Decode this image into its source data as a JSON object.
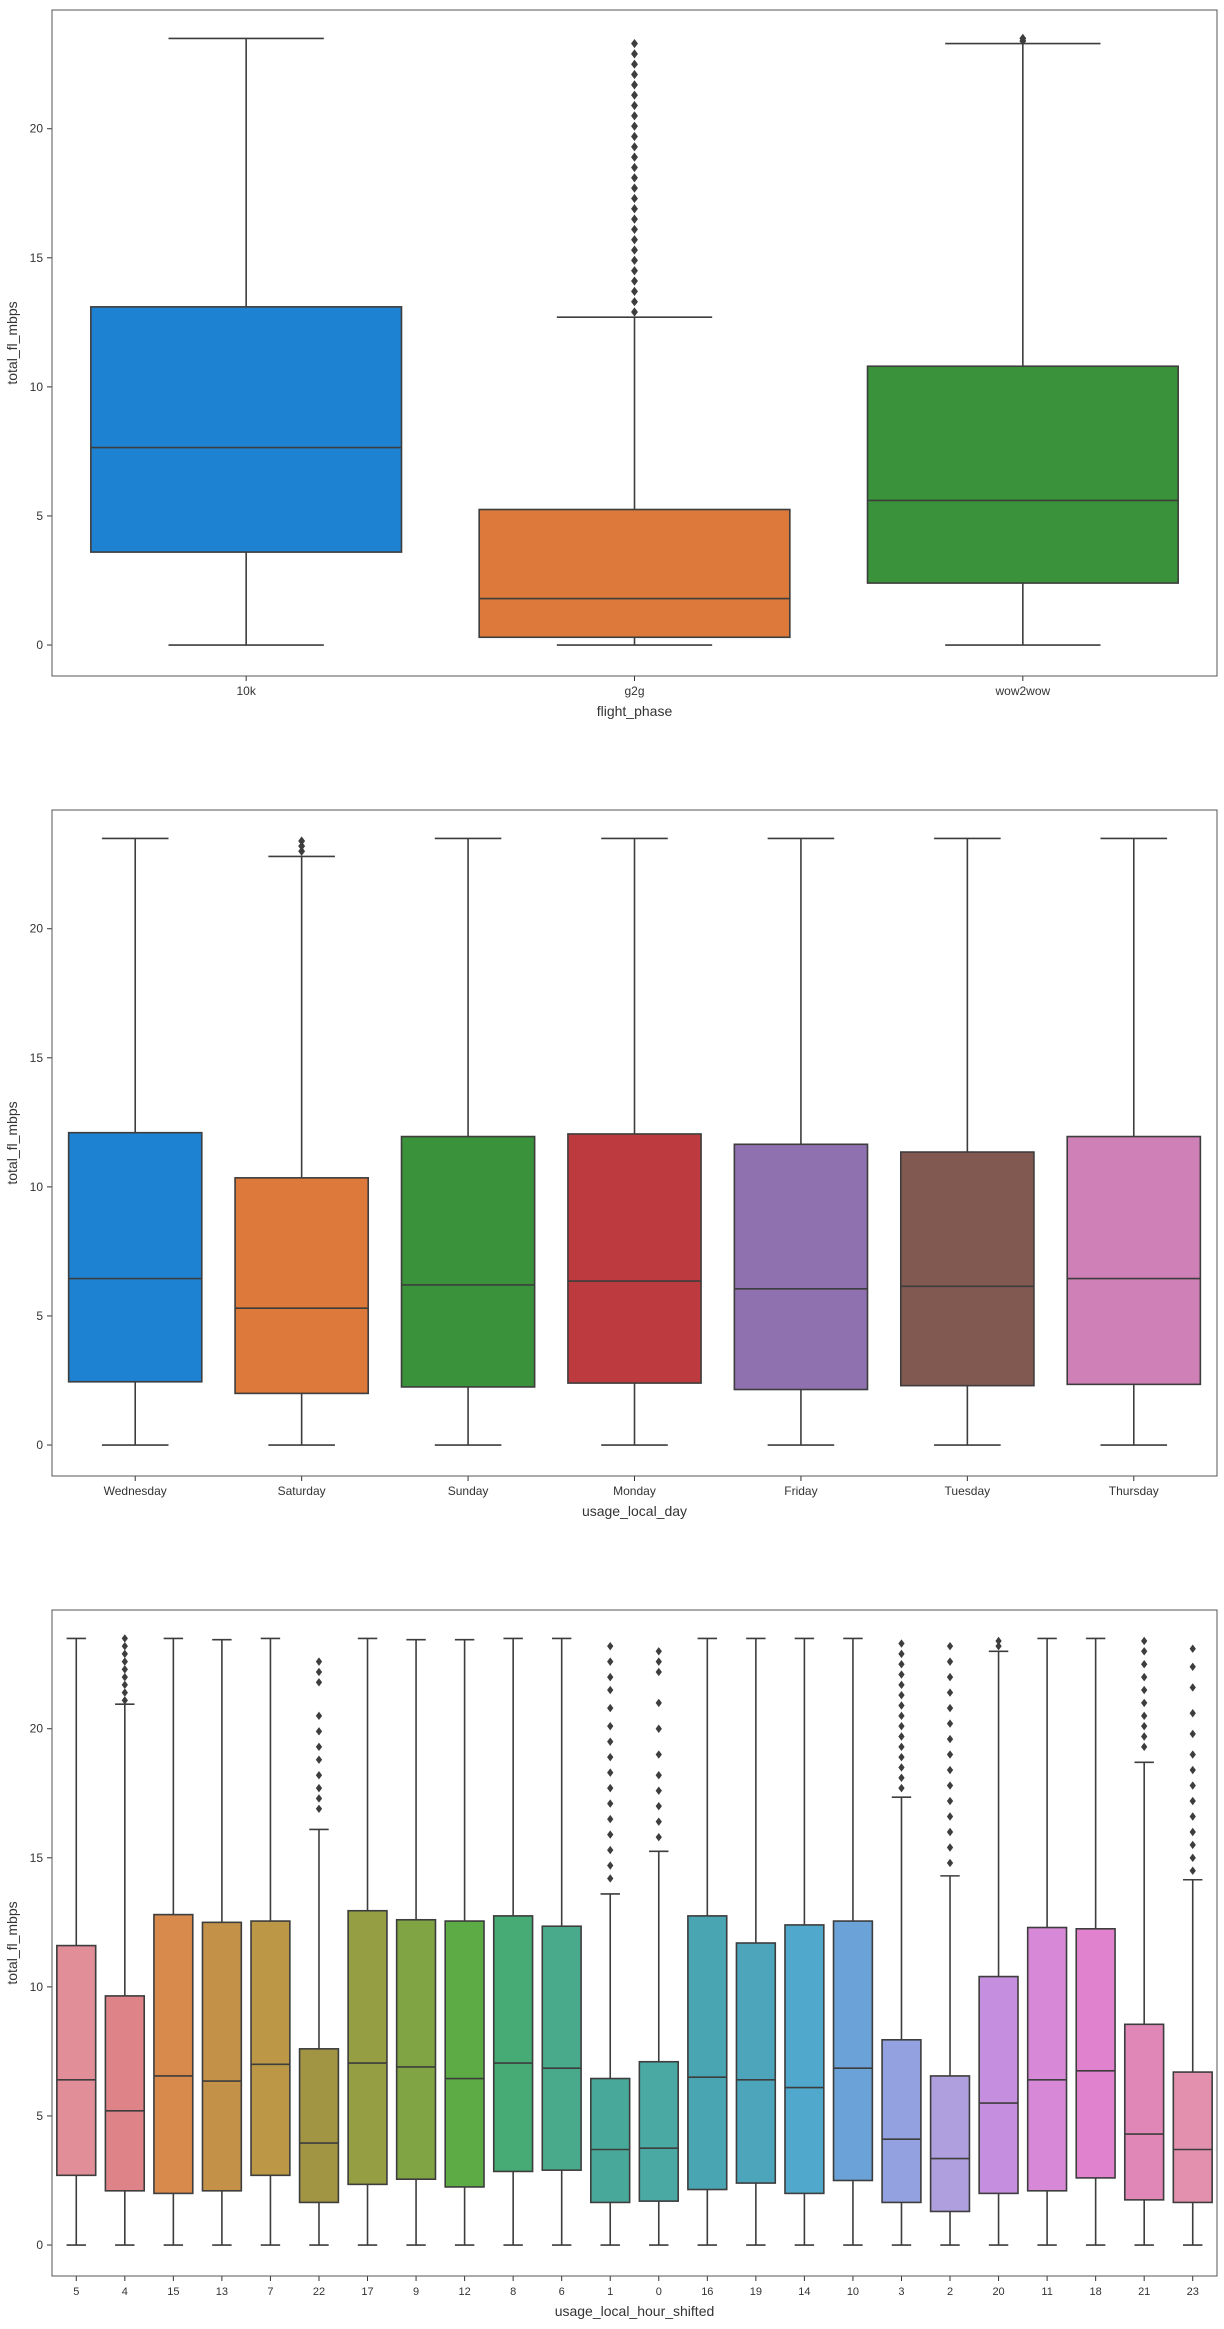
{
  "chart_data": [
    {
      "type": "box",
      "xlabel": "flight_phase",
      "ylabel": "total_fl_mbps",
      "ylim": [
        -1.2,
        24.6
      ],
      "yticks": [
        0,
        5,
        10,
        15,
        20
      ],
      "grid": false,
      "categories": [
        "10k",
        "g2g",
        "wow2wow"
      ],
      "colors": [
        "#1f86d8",
        "#e37d3d",
        "#3c973c"
      ],
      "boxes": [
        {
          "whislo": 0,
          "q1": 3.6,
          "med": 7.65,
          "q3": 13.1,
          "whishi": 23.5,
          "fliers": []
        },
        {
          "whislo": 0,
          "q1": 0.3,
          "med": 1.8,
          "q3": 5.25,
          "whishi": 12.7,
          "fliers": [
            12.9,
            13.3,
            13.7,
            14.1,
            14.5,
            14.9,
            15.3,
            15.7,
            16.1,
            16.5,
            16.9,
            17.3,
            17.7,
            18.1,
            18.5,
            18.9,
            19.3,
            19.7,
            20.1,
            20.5,
            20.9,
            21.3,
            21.7,
            22.1,
            22.5,
            22.9,
            23.3
          ]
        },
        {
          "whislo": 0,
          "q1": 2.4,
          "med": 5.6,
          "q3": 10.8,
          "whishi": 23.3,
          "fliers": [
            23.4,
            23.5
          ]
        }
      ]
    },
    {
      "type": "box",
      "xlabel": "usage_local_day",
      "ylabel": "total_fl_mbps",
      "ylim": [
        -1.2,
        24.6
      ],
      "yticks": [
        0,
        5,
        10,
        15,
        20
      ],
      "grid": false,
      "categories": [
        "Wednesday",
        "Saturday",
        "Sunday",
        "Monday",
        "Friday",
        "Tuesday",
        "Thursday"
      ],
      "colors": [
        "#1f86d8",
        "#e37d3d",
        "#3c973c",
        "#c33c40",
        "#9375b4",
        "#855c52",
        "#d585bd"
      ],
      "boxes": [
        {
          "whislo": 0,
          "q1": 2.45,
          "med": 6.45,
          "q3": 12.1,
          "whishi": 23.5,
          "fliers": []
        },
        {
          "whislo": 0,
          "q1": 2.0,
          "med": 5.3,
          "q3": 10.35,
          "whishi": 22.8,
          "fliers": [
            23.0,
            23.2,
            23.4
          ]
        },
        {
          "whislo": 0,
          "q1": 2.25,
          "med": 6.2,
          "q3": 11.95,
          "whishi": 23.5,
          "fliers": []
        },
        {
          "whislo": 0,
          "q1": 2.4,
          "med": 6.35,
          "q3": 12.05,
          "whishi": 23.5,
          "fliers": []
        },
        {
          "whislo": 0,
          "q1": 2.15,
          "med": 6.05,
          "q3": 11.65,
          "whishi": 23.5,
          "fliers": []
        },
        {
          "whislo": 0,
          "q1": 2.3,
          "med": 6.15,
          "q3": 11.35,
          "whishi": 23.5,
          "fliers": []
        },
        {
          "whislo": 0,
          "q1": 2.35,
          "med": 6.45,
          "q3": 11.95,
          "whishi": 23.5,
          "fliers": []
        }
      ]
    },
    {
      "type": "box",
      "xlabel": "usage_local_hour_shifted",
      "ylabel": "total_fl_mbps",
      "ylim": [
        -1.2,
        24.6
      ],
      "yticks": [
        0,
        5,
        10,
        15,
        20
      ],
      "grid": false,
      "categories": [
        "5",
        "4",
        "15",
        "13",
        "7",
        "22",
        "17",
        "9",
        "12",
        "8",
        "6",
        "1",
        "0",
        "16",
        "19",
        "14",
        "10",
        "3",
        "2",
        "20",
        "11",
        "18",
        "21",
        "23"
      ],
      "colors": [
        "#e8929d",
        "#e5878c",
        "#df8d4e",
        "#c9964a",
        "#c19c48",
        "#a69a45",
        "#9aa344",
        "#84a846",
        "#60b046",
        "#48b078",
        "#4aaf8e",
        "#4aae9f",
        "#4daea9",
        "#4baab6",
        "#4eaac0",
        "#52aed2",
        "#6ea8df",
        "#98a6e8",
        "#b5a4e5",
        "#cc92e6",
        "#de8ddf",
        "#e886d5",
        "#e88bbe",
        "#e994b2"
      ],
      "boxes": [
        {
          "whislo": 0,
          "q1": 2.7,
          "med": 6.4,
          "q3": 11.6,
          "whishi": 23.5,
          "fliers": []
        },
        {
          "whislo": 0,
          "q1": 2.1,
          "med": 5.2,
          "q3": 9.65,
          "whishi": 20.95,
          "fliers": [
            21.1,
            21.4,
            21.7,
            22.0,
            22.3,
            22.6,
            22.9,
            23.2,
            23.5
          ]
        },
        {
          "whislo": 0,
          "q1": 2.0,
          "med": 6.55,
          "q3": 12.8,
          "whishi": 23.5,
          "fliers": []
        },
        {
          "whislo": 0,
          "q1": 2.1,
          "med": 6.35,
          "q3": 12.5,
          "whishi": 23.45,
          "fliers": []
        },
        {
          "whislo": 0,
          "q1": 2.7,
          "med": 7.0,
          "q3": 12.55,
          "whishi": 23.5,
          "fliers": []
        },
        {
          "whislo": 0,
          "q1": 1.65,
          "med": 3.95,
          "q3": 7.6,
          "whishi": 16.1,
          "fliers": [
            16.9,
            17.3,
            17.7,
            18.2,
            18.8,
            19.3,
            19.9,
            20.5,
            21.8,
            22.2,
            22.6
          ]
        },
        {
          "whislo": 0,
          "q1": 2.35,
          "med": 7.05,
          "q3": 12.95,
          "whishi": 23.5,
          "fliers": []
        },
        {
          "whislo": 0,
          "q1": 2.55,
          "med": 6.9,
          "q3": 12.6,
          "whishi": 23.45,
          "fliers": []
        },
        {
          "whislo": 0,
          "q1": 2.25,
          "med": 6.45,
          "q3": 12.55,
          "whishi": 23.45,
          "fliers": []
        },
        {
          "whislo": 0,
          "q1": 2.85,
          "med": 7.05,
          "q3": 12.75,
          "whishi": 23.5,
          "fliers": []
        },
        {
          "whislo": 0,
          "q1": 2.9,
          "med": 6.85,
          "q3": 12.35,
          "whishi": 23.5,
          "fliers": []
        },
        {
          "whislo": 0,
          "q1": 1.65,
          "med": 3.7,
          "q3": 6.45,
          "whishi": 13.6,
          "fliers": [
            14.2,
            14.7,
            15.3,
            15.9,
            16.5,
            17.1,
            17.7,
            18.3,
            18.9,
            19.5,
            20.1,
            20.8,
            21.5,
            22.0,
            22.6,
            23.2
          ]
        },
        {
          "whislo": 0,
          "q1": 1.7,
          "med": 3.75,
          "q3": 7.1,
          "whishi": 15.25,
          "fliers": [
            15.8,
            16.4,
            17.0,
            17.6,
            18.2,
            19.0,
            20.0,
            21.0,
            22.2,
            22.6,
            23.0
          ]
        },
        {
          "whislo": 0,
          "q1": 2.15,
          "med": 6.5,
          "q3": 12.75,
          "whishi": 23.5,
          "fliers": []
        },
        {
          "whislo": 0,
          "q1": 2.4,
          "med": 6.4,
          "q3": 11.7,
          "whishi": 23.5,
          "fliers": []
        },
        {
          "whislo": 0,
          "q1": 2.0,
          "med": 6.1,
          "q3": 12.4,
          "whishi": 23.5,
          "fliers": []
        },
        {
          "whislo": 0,
          "q1": 2.5,
          "med": 6.85,
          "q3": 12.55,
          "whishi": 23.5,
          "fliers": []
        },
        {
          "whislo": 0,
          "q1": 1.65,
          "med": 4.1,
          "q3": 7.95,
          "whishi": 17.35,
          "fliers": [
            17.7,
            18.1,
            18.5,
            18.9,
            19.3,
            19.7,
            20.1,
            20.5,
            20.9,
            21.3,
            21.7,
            22.1,
            22.5,
            22.9,
            23.3
          ]
        },
        {
          "whislo": 0,
          "q1": 1.3,
          "med": 3.35,
          "q3": 6.55,
          "whishi": 14.3,
          "fliers": [
            14.8,
            15.4,
            16.0,
            16.6,
            17.2,
            17.8,
            18.4,
            19.0,
            19.6,
            20.2,
            20.8,
            21.4,
            22.0,
            22.6,
            23.2
          ]
        },
        {
          "whislo": 0,
          "q1": 2.0,
          "med": 5.5,
          "q3": 10.4,
          "whishi": 23.0,
          "fliers": [
            23.2,
            23.4
          ]
        },
        {
          "whislo": 0,
          "q1": 2.1,
          "med": 6.4,
          "q3": 12.3,
          "whishi": 23.5,
          "fliers": []
        },
        {
          "whislo": 0,
          "q1": 2.6,
          "med": 6.75,
          "q3": 12.25,
          "whishi": 23.5,
          "fliers": []
        },
        {
          "whislo": 0,
          "q1": 1.75,
          "med": 4.3,
          "q3": 8.55,
          "whishi": 18.7,
          "fliers": [
            19.3,
            19.7,
            20.1,
            20.5,
            21.0,
            21.5,
            22.0,
            22.5,
            23.0,
            23.4
          ]
        },
        {
          "whislo": 0,
          "q1": 1.65,
          "med": 3.7,
          "q3": 6.7,
          "whishi": 14.15,
          "fliers": [
            14.5,
            15.0,
            15.5,
            16.0,
            16.6,
            17.2,
            17.8,
            18.4,
            19.0,
            19.8,
            20.6,
            21.6,
            22.4,
            23.1
          ]
        }
      ]
    }
  ]
}
